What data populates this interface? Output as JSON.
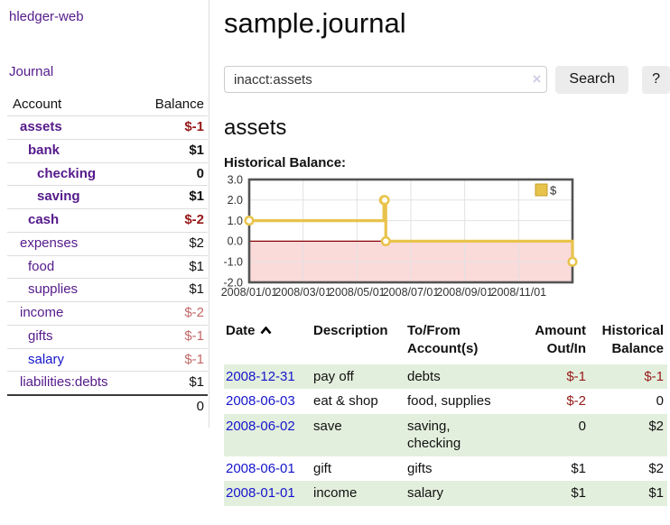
{
  "colors": {
    "link_purple": "#551a8b",
    "link_blue": "#1515cc",
    "negative_red": "#971919",
    "dim_negative": "#c46868",
    "row_green": "#e3efdd",
    "chart_line_gold": "#e8c34b",
    "chart_negative_fill": "#fbdada",
    "chart_zero_line": "#8b0000"
  },
  "sidebar": {
    "brand": "hledger-web",
    "journal_link": "Journal",
    "table": {
      "account_header": "Account",
      "balance_header": "Balance",
      "rows": [
        {
          "name": "assets",
          "balance": "$-1",
          "level": 1,
          "bold": true,
          "balance_style": "negative"
        },
        {
          "name": "bank",
          "balance": "$1",
          "level": 2,
          "bold": true,
          "balance_style": "normal"
        },
        {
          "name": "checking",
          "balance": "0",
          "level": 3,
          "bold": true,
          "balance_style": "normal"
        },
        {
          "name": "saving",
          "balance": "$1",
          "level": 3,
          "bold": true,
          "balance_style": "normal"
        },
        {
          "name": "cash",
          "balance": "$-2",
          "level": 2,
          "bold": true,
          "balance_style": "negative"
        },
        {
          "name": "expenses",
          "balance": "$2",
          "level": 1,
          "bold": false,
          "balance_style": "normal"
        },
        {
          "name": "food",
          "balance": "$1",
          "level": 2,
          "bold": false,
          "balance_style": "normal"
        },
        {
          "name": "supplies",
          "balance": "$1",
          "level": 2,
          "bold": false,
          "balance_style": "normal"
        },
        {
          "name": "income",
          "balance": "$-2",
          "level": 1,
          "bold": false,
          "balance_style": "dim-negative"
        },
        {
          "name": "gifts",
          "balance": "$-1",
          "level": 2,
          "bold": false,
          "balance_style": "dim-negative"
        },
        {
          "name": "salary",
          "balance": "$-1",
          "level": 2,
          "bold": false,
          "balance_style": "dim-negative",
          "link_style": "blue"
        },
        {
          "name": "liabilities:debts",
          "balance": "$1",
          "level": 1,
          "bold": false,
          "balance_style": "normal"
        }
      ],
      "total": "0"
    }
  },
  "main": {
    "title": "sample.journal",
    "search": {
      "value": "inacct:assets",
      "clear_icon": "×",
      "button_label": "Search",
      "help_label": "?"
    },
    "account_heading": "assets",
    "chart_label": "Historical Balance:",
    "table": {
      "headers": [
        "Date",
        "Description",
        "To/From Account(s)",
        "Amount Out/In",
        "Historical Balance"
      ],
      "rows": [
        {
          "date": "2008-12-31",
          "description": "pay off",
          "accounts": "debts",
          "amount": "$-1",
          "amount_negative": true,
          "balance": "$-1",
          "balance_negative": true,
          "green": true
        },
        {
          "date": "2008-06-03",
          "description": "eat & shop",
          "accounts": "food, supplies",
          "amount": "$-2",
          "amount_negative": true,
          "balance": "0",
          "balance_negative": false,
          "green": false
        },
        {
          "date": "2008-06-02",
          "description": "save",
          "accounts": "saving, checking",
          "amount": "0",
          "amount_negative": false,
          "balance": "$2",
          "balance_negative": false,
          "green": true
        },
        {
          "date": "2008-06-01",
          "description": "gift",
          "accounts": "gifts",
          "amount": "$1",
          "amount_negative": false,
          "balance": "$2",
          "balance_negative": false,
          "green": false
        },
        {
          "date": "2008-01-01",
          "description": "income",
          "accounts": "salary",
          "amount": "$1",
          "amount_negative": false,
          "balance": "$1",
          "balance_negative": false,
          "green": true
        }
      ]
    }
  },
  "chart_data": {
    "type": "line",
    "title": "Historical Balance:",
    "steps": true,
    "xlim": [
      0,
      12
    ],
    "ylim": [
      -2,
      3
    ],
    "y_ticks": [
      3,
      2,
      1,
      0,
      -1,
      -2
    ],
    "x_ticks": [
      {
        "x": 0,
        "label": "2008/01/01"
      },
      {
        "x": 2,
        "label": "2008/03/01"
      },
      {
        "x": 4,
        "label": "2008/05/01"
      },
      {
        "x": 6,
        "label": "2008/07/01"
      },
      {
        "x": 8,
        "label": "2008/09/01"
      },
      {
        "x": 10,
        "label": "2008/11/01"
      }
    ],
    "series": [
      {
        "name": "$",
        "points": [
          {
            "date": "2008-01-01",
            "x": 0,
            "y": 1
          },
          {
            "date": "2008-06-01",
            "x": 5.0,
            "y": 2
          },
          {
            "date": "2008-06-02",
            "x": 5.03,
            "y": 2
          },
          {
            "date": "2008-06-03",
            "x": 5.07,
            "y": 0
          },
          {
            "date": "2008-12-31",
            "x": 12,
            "y": -1
          }
        ]
      }
    ],
    "legend": {
      "label": "$",
      "position": "top-right"
    },
    "grid": true,
    "negative_region_shaded": true
  }
}
